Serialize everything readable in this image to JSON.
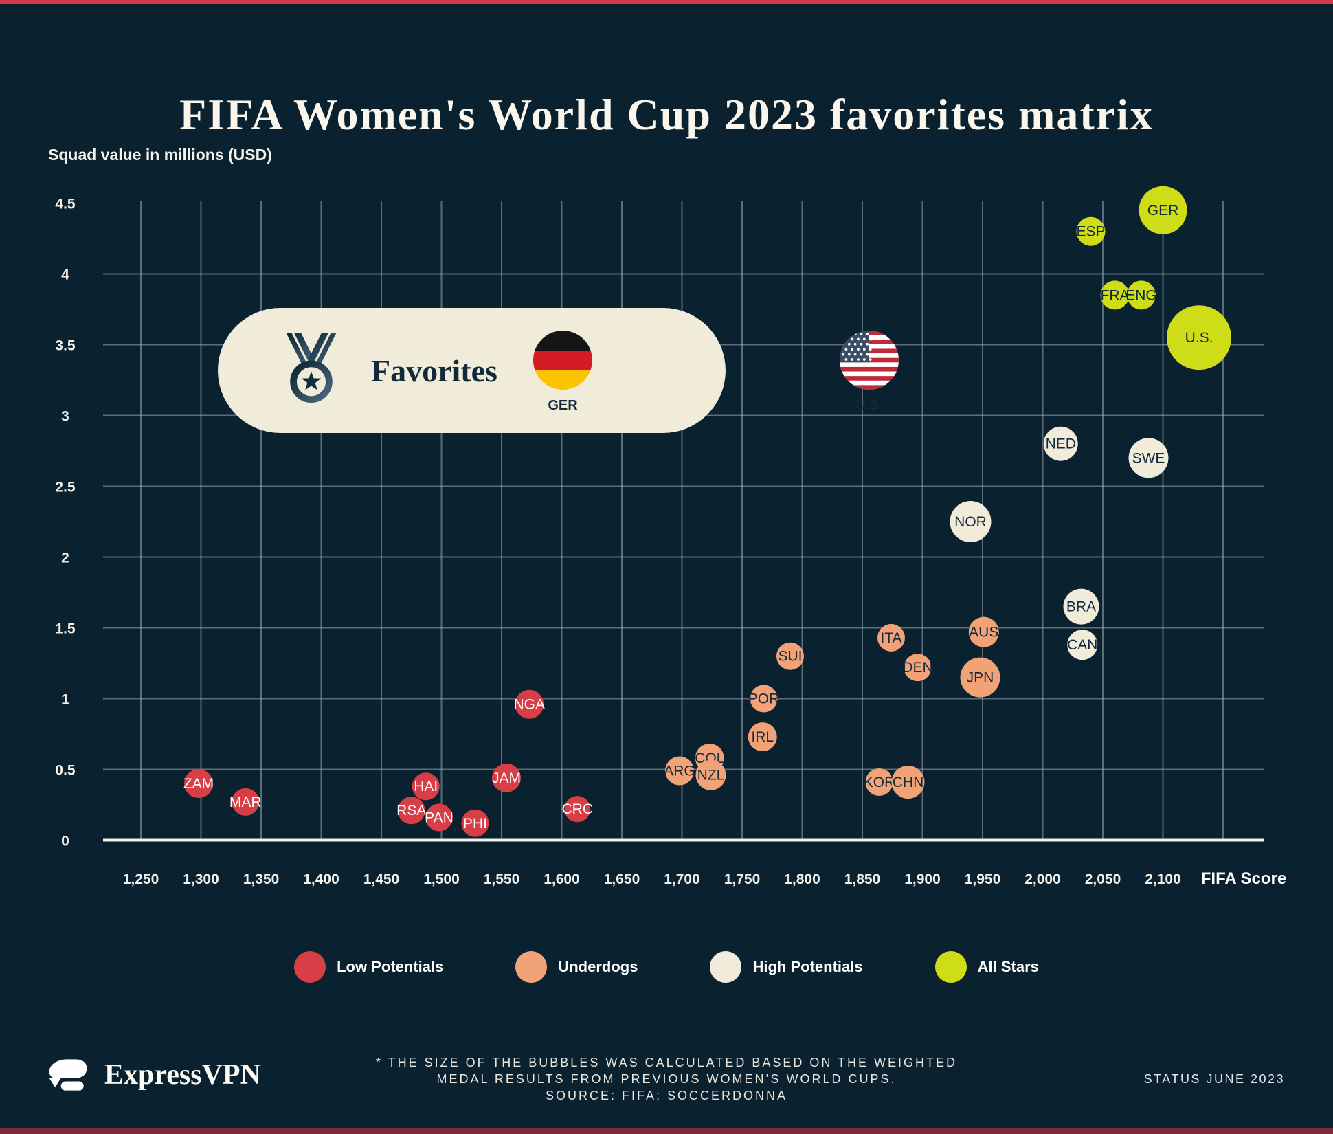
{
  "page": {
    "title": "FIFA Women's World Cup 2023 favorites matrix",
    "brand": "ExpressVPN",
    "footnote": "* THE SIZE OF THE BUBBLES WAS CALCULATED BASED ON THE WEIGHTED\nMEDAL RESULTS FROM PREVIOUS WOMEN’S WORLD CUPS.\nSOURCE: FIFA; SOCCERDONNA",
    "status": "STATUS JUNE 2023"
  },
  "theme": {
    "background": "#0a2130",
    "accent_top": "#d5394a",
    "accent_bottom": "#7c2b38",
    "grid": "#aeb9c2",
    "axis": "#f3efe4",
    "pill": "#f0ecd9",
    "dark_text": "#12293c"
  },
  "favorites_callout": {
    "label": "Favorites",
    "teams": [
      {
        "code": "GER"
      },
      {
        "code": "U.S."
      }
    ]
  },
  "legend": [
    {
      "label": "Low Potentials",
      "color": "#d83e46"
    },
    {
      "label": "Underdogs",
      "color": "#f1a277"
    },
    {
      "label": "High Potentials",
      "color": "#f0ecd9"
    },
    {
      "label": "All Stars",
      "color": "#cedd17"
    }
  ],
  "chart_data": {
    "type": "bubble",
    "title": "FIFA Women's World Cup 2023 favorites matrix",
    "xlabel": "FIFA Score",
    "ylabel": "Squad value in millions (USD)",
    "x_range": [
      1250,
      2150
    ],
    "y_range": [
      0,
      4.5
    ],
    "x_ticks": [
      1250,
      1300,
      1350,
      1400,
      1450,
      1500,
      1550,
      1600,
      1650,
      1700,
      1750,
      1800,
      1850,
      1900,
      1950,
      2000,
      2050,
      2100
    ],
    "y_ticks": [
      0,
      0.5,
      1,
      1.5,
      2,
      2.5,
      3,
      3.5,
      4,
      4.5
    ],
    "grid": true,
    "size_note": "bubble radius r is in px; size encodes weighted medal results from previous Women's World Cups",
    "series": [
      {
        "name": "Low Potentials",
        "color": "#d83e46",
        "label_color": "#ffffff",
        "points": [
          {
            "team": "ZAM",
            "fifa": 1298,
            "value": 0.4,
            "r": 21
          },
          {
            "team": "MAR",
            "fifa": 1337,
            "value": 0.27,
            "r": 20
          },
          {
            "team": "HAI",
            "fifa": 1487,
            "value": 0.38,
            "r": 20
          },
          {
            "team": "RSA",
            "fifa": 1475,
            "value": 0.21,
            "r": 20
          },
          {
            "team": "PAN",
            "fifa": 1498,
            "value": 0.16,
            "r": 20
          },
          {
            "team": "PHI",
            "fifa": 1528,
            "value": 0.12,
            "r": 20
          },
          {
            "team": "JAM",
            "fifa": 1554,
            "value": 0.44,
            "r": 21
          },
          {
            "team": "NGA",
            "fifa": 1573,
            "value": 0.96,
            "r": 21
          },
          {
            "team": "CRC",
            "fifa": 1613,
            "value": 0.22,
            "r": 19
          }
        ]
      },
      {
        "name": "Underdogs",
        "color": "#f1a277",
        "label_color": "#12293c",
        "points": [
          {
            "team": "POR",
            "fifa": 1768,
            "value": 1.0,
            "r": 20
          },
          {
            "team": "IRL",
            "fifa": 1767,
            "value": 0.73,
            "r": 21
          },
          {
            "team": "SUI",
            "fifa": 1790,
            "value": 1.3,
            "r": 20
          },
          {
            "team": "ITA",
            "fifa": 1874,
            "value": 1.43,
            "r": 20
          },
          {
            "team": "DEN",
            "fifa": 1896,
            "value": 1.22,
            "r": 20
          },
          {
            "team": "AUS",
            "fifa": 1951,
            "value": 1.47,
            "r": 22
          },
          {
            "team": "JPN",
            "fifa": 1948,
            "value": 1.15,
            "r": 29
          },
          {
            "team": "COL",
            "fifa": 1723,
            "value": 0.58,
            "r": 21
          },
          {
            "team": "ARG",
            "fifa": 1698,
            "value": 0.49,
            "r": 21
          },
          {
            "team": "NZL",
            "fifa": 1724,
            "value": 0.46,
            "r": 22
          },
          {
            "team": "KOR",
            "fifa": 1864,
            "value": 0.41,
            "r": 20
          },
          {
            "team": "CHN",
            "fifa": 1888,
            "value": 0.41,
            "r": 24
          }
        ]
      },
      {
        "name": "High Potentials",
        "color": "#f0ecd9",
        "label_color": "#12293c",
        "points": [
          {
            "team": "NED",
            "fifa": 2015,
            "value": 2.8,
            "r": 25
          },
          {
            "team": "SWE",
            "fifa": 2088,
            "value": 2.7,
            "r": 29
          },
          {
            "team": "NOR",
            "fifa": 1940,
            "value": 2.25,
            "r": 30
          },
          {
            "team": "BRA",
            "fifa": 2032,
            "value": 1.65,
            "r": 26
          },
          {
            "team": "CAN",
            "fifa": 2033,
            "value": 1.38,
            "r": 22
          }
        ]
      },
      {
        "name": "All Stars",
        "color": "#cedd17",
        "label_color": "#12293c",
        "points": [
          {
            "team": "ESP",
            "fifa": 2040,
            "value": 4.3,
            "r": 21
          },
          {
            "team": "GER",
            "fifa": 2100,
            "value": 4.45,
            "r": 35
          },
          {
            "team": "FRA",
            "fifa": 2060,
            "value": 3.85,
            "r": 21
          },
          {
            "team": "ENG",
            "fifa": 2082,
            "value": 3.85,
            "r": 21
          },
          {
            "team": "U.S.",
            "fifa": 2130,
            "value": 3.55,
            "r": 47
          }
        ]
      }
    ]
  }
}
